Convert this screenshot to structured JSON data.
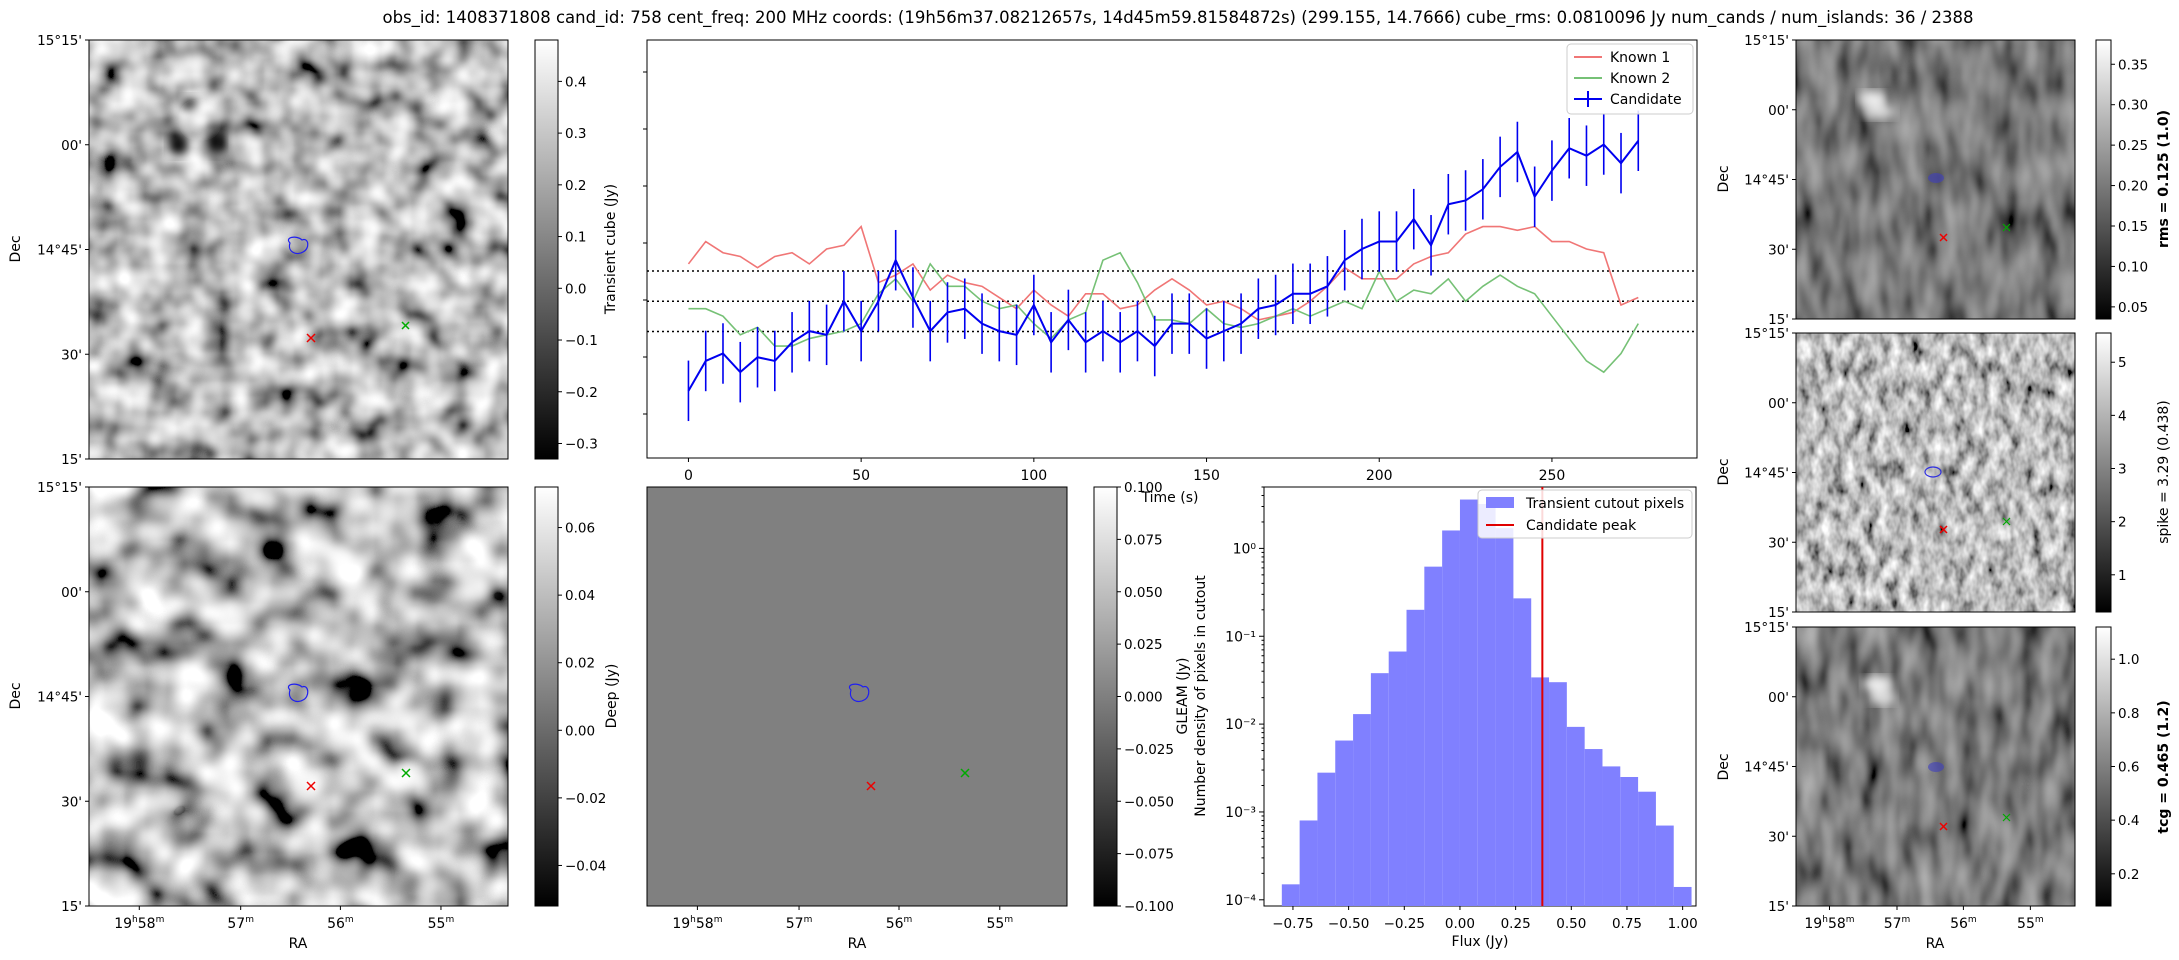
{
  "suptitle": "obs_id: 1408371808 cand_id: 758 cent_freq: 200 MHz coords: (19h56m37.08212657s, 14d45m59.81584872s) (299.155, 14.7666) cube_rms: 0.0810096 Jy num_cands / num_islands: 36 / 2388",
  "labels": {
    "dec": "Dec",
    "ra": "RA",
    "transient_cb": "Transient cube (Jy)",
    "deep_cb": "Deep (Jy)",
    "gleam_cb": "GLEAM (Jy)",
    "rms_cb": "rms = 0.125 (1.0)",
    "spike_cb": "spike = 3.29 (0.438)",
    "tcg_cb": "tcg = 0.465 (1.2)"
  },
  "dec_ticks": [
    "15°15'",
    "00'",
    "14°45'",
    "30'",
    "15'"
  ],
  "ra_ticks": [
    {
      "main": "19",
      "sup1": "h",
      "num": "58",
      "sup2": "m"
    },
    {
      "main": "",
      "sup1": "",
      "num": "57",
      "sup2": "m"
    },
    {
      "main": "",
      "sup1": "",
      "num": "56",
      "sup2": "m"
    },
    {
      "main": "",
      "sup1": "",
      "num": "55",
      "sup2": "m"
    }
  ],
  "colorbars": {
    "transient": {
      "min": -0.33,
      "max": 0.48,
      "ticks": [
        "0.4",
        "0.3",
        "0.2",
        "0.1",
        "0.0",
        "−0.1",
        "−0.2",
        "−0.3"
      ],
      "tickvals": [
        0.4,
        0.3,
        0.2,
        0.1,
        0.0,
        -0.1,
        -0.2,
        -0.3
      ]
    },
    "deep": {
      "min": -0.052,
      "max": 0.072,
      "ticks": [
        "0.06",
        "0.04",
        "0.02",
        "0.00",
        "−0.02",
        "−0.04"
      ],
      "tickvals": [
        0.06,
        0.04,
        0.02,
        0.0,
        -0.02,
        -0.04
      ]
    },
    "gleam": {
      "min": -0.1,
      "max": 0.1,
      "ticks": [
        "0.100",
        "0.075",
        "0.050",
        "0.025",
        "0.000",
        "−0.025",
        "−0.050",
        "−0.075",
        "−0.100"
      ],
      "tickvals": [
        0.1,
        0.075,
        0.05,
        0.025,
        0.0,
        -0.025,
        -0.05,
        -0.075,
        -0.1
      ]
    },
    "rms": {
      "min": 0.035,
      "max": 0.38,
      "ticks": [
        "0.35",
        "0.30",
        "0.25",
        "0.20",
        "0.15",
        "0.10",
        "0.05"
      ],
      "tickvals": [
        0.35,
        0.3,
        0.25,
        0.2,
        0.15,
        0.1,
        0.05
      ]
    },
    "spike": {
      "min": 0.3,
      "max": 5.55,
      "ticks": [
        "5",
        "4",
        "3",
        "2",
        "1"
      ],
      "tickvals": [
        5,
        4,
        3,
        2,
        1
      ]
    },
    "tcg": {
      "min": 0.08,
      "max": 1.12,
      "ticks": [
        "1.0",
        "0.8",
        "0.6",
        "0.4",
        "0.2"
      ],
      "tickvals": [
        1.0,
        0.8,
        0.6,
        0.4,
        0.2
      ]
    }
  },
  "chart_data": [
    {
      "type": "line",
      "title": "",
      "xlabel": "Time (s)",
      "ylabel": "",
      "xlim": [
        -12,
        292
      ],
      "ylim": [
        -0.42,
        0.7
      ],
      "xticks": [
        0,
        50,
        100,
        150,
        200,
        250
      ],
      "hlines": [
        0.081,
        0.0,
        -0.081
      ],
      "legend": {
        "position": "top-right",
        "entries": [
          "Known 1",
          "Known 2",
          "Candidate"
        ]
      },
      "x": [
        0,
        5,
        10,
        15,
        20,
        25,
        30,
        35,
        40,
        45,
        50,
        55,
        60,
        65,
        70,
        75,
        80,
        85,
        90,
        95,
        100,
        105,
        110,
        115,
        120,
        125,
        130,
        135,
        140,
        145,
        150,
        155,
        160,
        165,
        170,
        175,
        180,
        185,
        190,
        195,
        200,
        205,
        210,
        215,
        220,
        225,
        230,
        235,
        240,
        245,
        250,
        255,
        260,
        265,
        270,
        275
      ],
      "series": [
        {
          "name": "Known 1",
          "color": "#f07676",
          "values": [
            0.1,
            0.16,
            0.13,
            0.12,
            0.09,
            0.12,
            0.13,
            0.1,
            0.14,
            0.15,
            0.2,
            0.05,
            0.07,
            0.1,
            0.03,
            0.07,
            0.05,
            0.04,
            0.01,
            -0.02,
            0.03,
            -0.01,
            -0.04,
            0.02,
            0.02,
            -0.02,
            -0.01,
            0.03,
            0.06,
            0.03,
            -0.01,
            0.0,
            -0.02,
            -0.05,
            -0.04,
            -0.03,
            0.0,
            0.04,
            0.09,
            0.06,
            0.06,
            0.06,
            0.1,
            0.12,
            0.13,
            0.18,
            0.2,
            0.2,
            0.19,
            0.2,
            0.16,
            0.16,
            0.14,
            0.13,
            -0.01,
            0.01
          ]
        },
        {
          "name": "Known 2",
          "color": "#76c176",
          "values": [
            -0.02,
            -0.02,
            -0.04,
            -0.09,
            -0.07,
            -0.12,
            -0.12,
            -0.1,
            -0.09,
            -0.08,
            -0.06,
            0.02,
            0.06,
            0.0,
            0.1,
            0.04,
            0.04,
            0.0,
            -0.02,
            -0.01,
            -0.06,
            -0.1,
            -0.05,
            -0.03,
            0.11,
            0.13,
            0.05,
            -0.05,
            -0.05,
            -0.06,
            -0.02,
            -0.06,
            -0.07,
            -0.06,
            -0.04,
            -0.02,
            -0.04,
            -0.02,
            0.0,
            -0.02,
            0.08,
            0.0,
            0.03,
            0.02,
            0.06,
            0.0,
            0.04,
            0.07,
            0.04,
            0.02,
            -0.04,
            -0.1,
            -0.16,
            -0.19,
            -0.14,
            -0.06
          ]
        },
        {
          "name": "Candidate",
          "color": "#0000f0",
          "yerr": 0.081,
          "values": [
            -0.24,
            -0.16,
            -0.14,
            -0.19,
            -0.15,
            -0.16,
            -0.11,
            -0.08,
            -0.09,
            0.0,
            -0.08,
            0.0,
            0.11,
            0.01,
            -0.08,
            -0.03,
            -0.02,
            -0.06,
            -0.08,
            -0.09,
            -0.01,
            -0.11,
            -0.05,
            -0.11,
            -0.08,
            -0.11,
            -0.08,
            -0.12,
            -0.06,
            -0.06,
            -0.1,
            -0.08,
            -0.06,
            -0.02,
            -0.01,
            0.02,
            0.02,
            0.04,
            0.11,
            0.14,
            0.16,
            0.16,
            0.22,
            0.15,
            0.26,
            0.27,
            0.3,
            0.36,
            0.4,
            0.28,
            0.35,
            0.41,
            0.39,
            0.42,
            0.37,
            0.43
          ]
        }
      ]
    },
    {
      "type": "bar",
      "title": "",
      "xlabel": "Flux (Jy)",
      "ylabel": "Number density of pixels in cutout",
      "yscale": "log",
      "xlim": [
        -0.88,
        1.06
      ],
      "ylim": [
        8.5e-05,
        5
      ],
      "xticks": [
        -0.75,
        -0.5,
        -0.25,
        0.0,
        0.25,
        0.5,
        0.75,
        1.0
      ],
      "xtick_labels": [
        "−0.75",
        "−0.50",
        "−0.25",
        "0.00",
        "0.25",
        "0.50",
        "0.75",
        "1.00"
      ],
      "ytick_labels": [
        "10⁰",
        "10⁻¹",
        "10⁻²",
        "10⁻³",
        "10⁻⁴"
      ],
      "bin_edges": [
        -0.8,
        -0.72,
        -0.64,
        -0.56,
        -0.48,
        -0.4,
        -0.32,
        -0.24,
        -0.16,
        -0.08,
        0.0,
        0.08,
        0.16,
        0.24,
        0.32,
        0.4,
        0.48,
        0.56,
        0.64,
        0.72,
        0.8,
        0.88,
        0.96,
        1.04
      ],
      "values": [
        0.00015,
        0.0008,
        0.0028,
        0.0065,
        0.013,
        0.038,
        0.067,
        0.2,
        0.62,
        1.6,
        3.6,
        3.2,
        1.7,
        0.27,
        0.034,
        0.03,
        0.0093,
        0.0052,
        0.0033,
        0.0025,
        0.0017,
        0.0007,
        0.00014
      ],
      "vline": 0.37,
      "legend": {
        "position": "top-right",
        "entries": [
          "Transient cutout pixels",
          "Candidate peak"
        ]
      }
    }
  ]
}
